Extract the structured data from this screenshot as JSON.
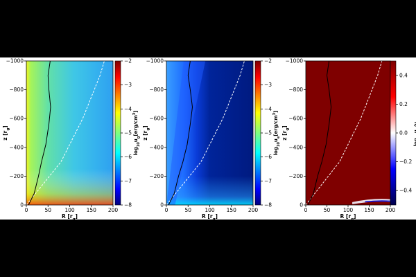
{
  "chart_data": [
    {
      "type": "heatmap",
      "colormap": "jet",
      "xlabel": "R [r",
      "xlabel_sub": "g",
      "xlabel_tail": "]",
      "ylabel": "z [r",
      "ylabel_sub": "g",
      "ylabel_tail": "]",
      "xlim": [
        0,
        200
      ],
      "ylim": [
        0,
        -1000
      ],
      "xticks": [
        "0",
        "50",
        "100",
        "150",
        "200"
      ],
      "yticks": [
        "0",
        "−200",
        "−400",
        "−600",
        "−800",
        "−1000"
      ],
      "colorbar": {
        "label": "log",
        "label_sub": "10",
        "label_mid": "u",
        "label_sub2": "g",
        "label_tail": "[erg/cm",
        "label_sup": "3",
        "label_end": "]",
        "range": [
          -8,
          -2
        ],
        "ticks": [
          "−2",
          "−3",
          "−4",
          "−5",
          "−6",
          "−7",
          "−8"
        ]
      },
      "curves": {
        "black_solid": [
          [
            5,
            0
          ],
          [
            18,
            -80
          ],
          [
            28,
            -200
          ],
          [
            35,
            -300
          ],
          [
            45,
            -420
          ],
          [
            52,
            -560
          ],
          [
            56,
            -680
          ],
          [
            52,
            -800
          ],
          [
            50,
            -900
          ],
          [
            55,
            -1000
          ]
        ],
        "white_dashed": [
          [
            0,
            0
          ],
          [
            80,
            -300
          ],
          [
            130,
            -600
          ],
          [
            170,
            -900
          ],
          [
            180,
            -1000
          ]
        ]
      }
    },
    {
      "type": "heatmap",
      "colormap": "jet",
      "xlabel": "R [r",
      "xlabel_sub": "g",
      "xlabel_tail": "]",
      "ylabel": "z [r",
      "ylabel_sub": "g",
      "ylabel_tail": "]",
      "xlim": [
        0,
        200
      ],
      "ylim": [
        0,
        -1000
      ],
      "xticks": [
        "0",
        "50",
        "100",
        "150",
        "200"
      ],
      "yticks": [
        "0",
        "−200",
        "−400",
        "−600",
        "−800",
        "−1000"
      ],
      "colorbar": {
        "label": "log",
        "label_sub": "10",
        "label_mid": "u",
        "label_sub2": "e",
        "label_tail": "[erg/cm",
        "label_sup": "3",
        "label_end": "]",
        "range": [
          -8,
          -2
        ],
        "ticks": [
          "−2",
          "−3",
          "−4",
          "−5",
          "−6",
          "−7",
          "−8"
        ]
      },
      "curves": {
        "black_solid": [
          [
            5,
            0
          ],
          [
            18,
            -80
          ],
          [
            28,
            -200
          ],
          [
            38,
            -300
          ],
          [
            48,
            -420
          ],
          [
            55,
            -560
          ],
          [
            60,
            -680
          ],
          [
            55,
            -800
          ],
          [
            50,
            -900
          ],
          [
            55,
            -1000
          ]
        ],
        "white_dashed": [
          [
            0,
            0
          ],
          [
            80,
            -300
          ],
          [
            130,
            -600
          ],
          [
            170,
            -900
          ],
          [
            180,
            -1000
          ]
        ]
      }
    },
    {
      "type": "heatmap",
      "colormap": "seismic",
      "xlabel": "R [r",
      "xlabel_sub": "g",
      "xlabel_tail": "]",
      "ylabel": "z [r",
      "ylabel_sub": "g",
      "ylabel_tail": "]",
      "xlim": [
        0,
        200
      ],
      "ylim": [
        0,
        -1000
      ],
      "xticks": [
        "0",
        "50",
        "100",
        "150",
        "200"
      ],
      "yticks": [
        "0",
        "−200",
        "−400",
        "−600",
        "−800",
        "−1000"
      ],
      "colorbar": {
        "label": "log",
        "label_sub": "10",
        "label_mid": "u",
        "label_sub2": "B",
        "label_tail": "/u",
        "label_sup": "",
        "label_end": "",
        "label_sub3": "e",
        "range": [
          -0.5,
          0.5
        ],
        "ticks": [
          "0.4",
          "0.2",
          "0.0",
          "−0.2",
          "−0.4"
        ]
      },
      "curves": {
        "black_solid": [
          [
            5,
            0
          ],
          [
            18,
            -80
          ],
          [
            28,
            -200
          ],
          [
            38,
            -300
          ],
          [
            48,
            -420
          ],
          [
            55,
            -560
          ],
          [
            60,
            -680
          ],
          [
            55,
            -800
          ],
          [
            50,
            -900
          ],
          [
            55,
            -1000
          ]
        ],
        "white_dashed": [
          [
            0,
            0
          ],
          [
            80,
            -300
          ],
          [
            130,
            -600
          ],
          [
            170,
            -900
          ],
          [
            180,
            -1000
          ]
        ]
      }
    }
  ]
}
